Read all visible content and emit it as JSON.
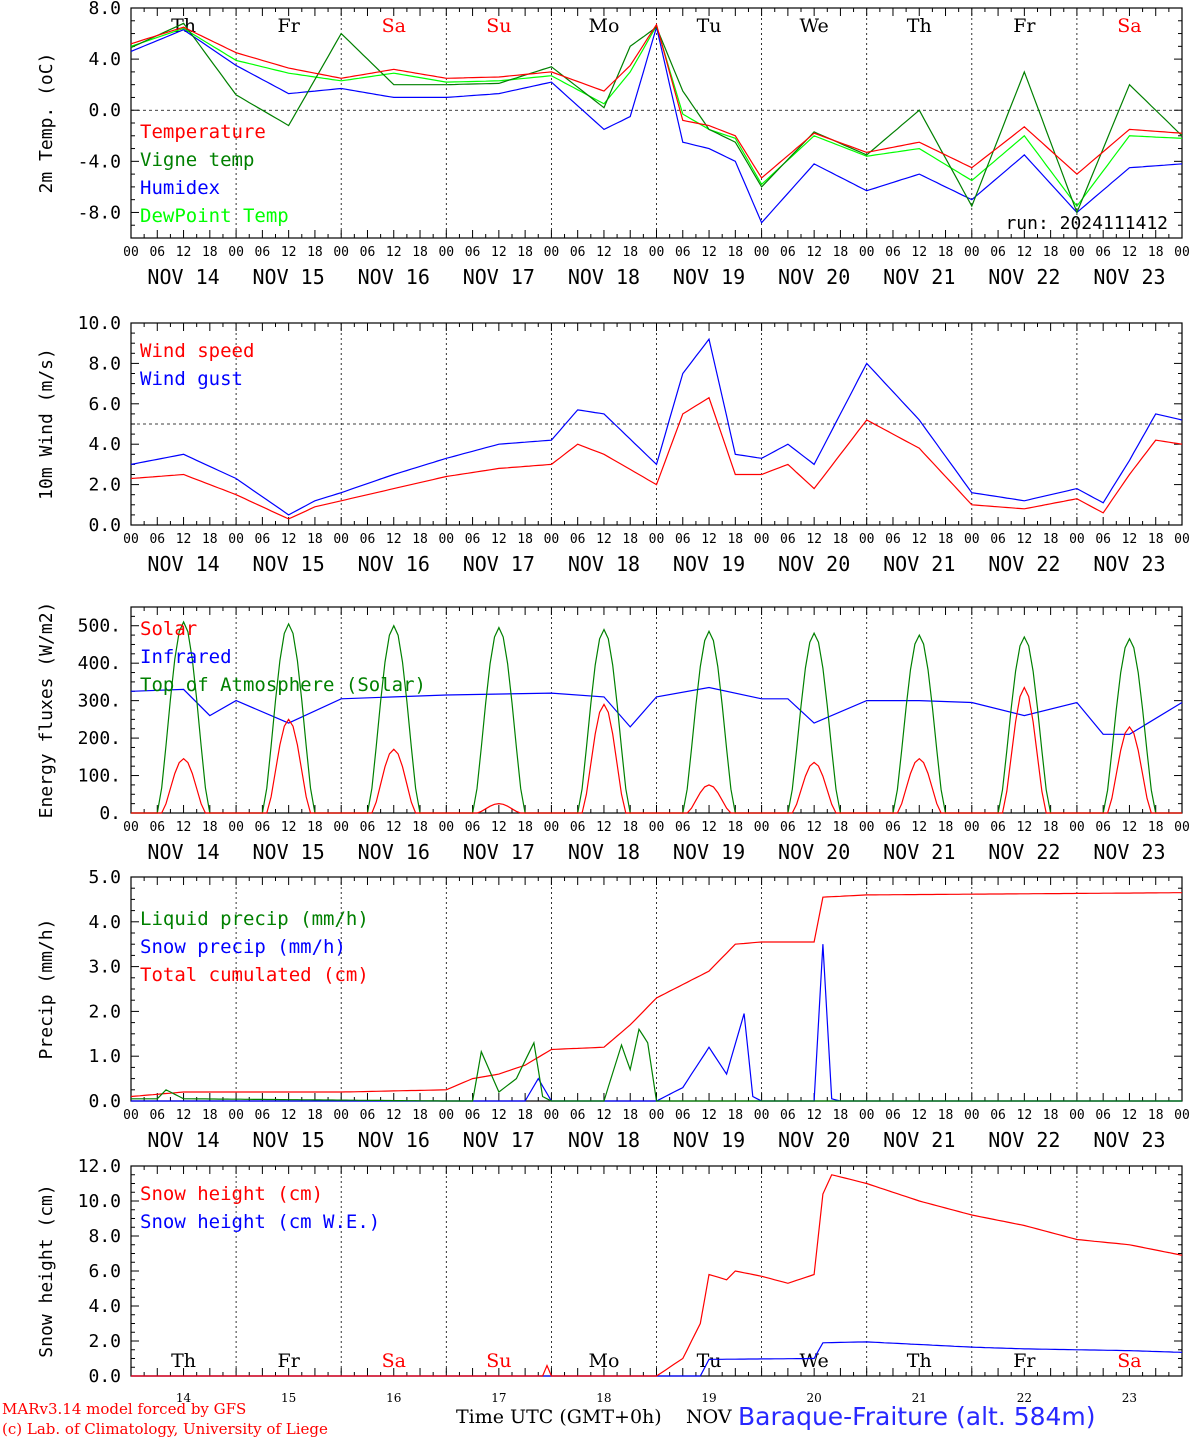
{
  "run_label": "run: 2024111412",
  "x_time_title": "Time UTC (GMT+0h)",
  "x_month": "NOV",
  "station": "Baraque-Fraiture (alt. 584m)",
  "credits": [
    "MARv3.14 model forced by GFS",
    "(c) Lab. of Climatology, University of Liege"
  ],
  "days": {
    "labels": [
      "NOV 14",
      "NOV 15",
      "NOV 16",
      "NOV 17",
      "NOV 18",
      "NOV 19",
      "NOV 20",
      "NOV 21",
      "NOV 22",
      "NOV 23"
    ],
    "weekdays": [
      "Th",
      "Fr",
      "Sa",
      "Su",
      "Mo",
      "Tu",
      "We",
      "Th",
      "Fr",
      "Sa"
    ],
    "weekday_colors": [
      "#000000",
      "#000000",
      "#ff0000",
      "#ff0000",
      "#000000",
      "#000000",
      "#000000",
      "#000000",
      "#000000",
      "#ff0000"
    ],
    "day_numbers": [
      "14",
      "15",
      "16",
      "17",
      "18",
      "19",
      "20",
      "21",
      "22",
      "23"
    ],
    "hour_ticks": [
      "00",
      "06",
      "12",
      "18"
    ]
  },
  "chart_data": [
    {
      "type": "line",
      "ylabel": "2m Temp. (oC)",
      "ylim": [
        -10,
        8
      ],
      "yticks": [
        -8,
        -4,
        0,
        4,
        8
      ],
      "ytick_labels": [
        "-8.0",
        "-4.0",
        "0.0",
        "4.0",
        "8.0"
      ],
      "dashed_y": 0,
      "x_hours": [
        0,
        12,
        24,
        36,
        48,
        60,
        72,
        84,
        96,
        108,
        114,
        120,
        126,
        132,
        138,
        144,
        156,
        168,
        180,
        192,
        204,
        216,
        228,
        240
      ],
      "series": [
        {
          "name": "Temperature",
          "color": "#ff0000",
          "values": [
            5.2,
            6.5,
            4.5,
            3.3,
            2.5,
            3.2,
            2.5,
            2.6,
            3.0,
            1.5,
            3.5,
            6.7,
            -0.8,
            -1.2,
            -2.0,
            -5.3,
            -1.8,
            -3.3,
            -2.5,
            -4.5,
            -1.3,
            -5.0,
            -1.5,
            -1.8
          ]
        },
        {
          "name": "Vigne temp",
          "color": "#008000",
          "values": [
            4.9,
            6.8,
            1.2,
            -1.2,
            6.0,
            2.0,
            2.0,
            2.1,
            3.4,
            0.2,
            5.0,
            6.5,
            1.5,
            -1.5,
            -2.5,
            -6.0,
            -1.7,
            -3.5,
            0.0,
            -7.5,
            3.0,
            -8.0,
            2.0,
            -2.0
          ]
        },
        {
          "name": "Humidex",
          "color": "#0000ff",
          "values": [
            4.6,
            6.3,
            3.5,
            1.3,
            1.7,
            1.0,
            1.0,
            1.3,
            2.2,
            -1.5,
            -0.5,
            6.5,
            -2.5,
            -3.0,
            -4.0,
            -8.8,
            -4.2,
            -6.3,
            -5.0,
            -7.0,
            -3.5,
            -8.0,
            -4.5,
            -4.2
          ]
        },
        {
          "name": "DewPoint Temp",
          "color": "#00ff00",
          "values": [
            5.0,
            6.4,
            3.9,
            2.9,
            2.3,
            2.9,
            2.2,
            2.3,
            2.7,
            0.5,
            3.0,
            6.6,
            -0.3,
            -1.5,
            -2.2,
            -5.8,
            -2.0,
            -3.6,
            -3.0,
            -5.5,
            -2.0,
            -7.5,
            -2.0,
            -2.2
          ]
        }
      ],
      "legend": "top-left"
    },
    {
      "type": "line",
      "ylabel": "10m Wind (m/s)",
      "ylim": [
        0,
        10
      ],
      "yticks": [
        0,
        2,
        4,
        6,
        8,
        10
      ],
      "ytick_labels": [
        "0.0",
        "2.0",
        "4.0",
        "6.0",
        "8.0",
        "10.0"
      ],
      "dashed_y": 5,
      "x_hours": [
        0,
        12,
        24,
        36,
        42,
        48,
        60,
        72,
        84,
        96,
        102,
        108,
        120,
        126,
        132,
        138,
        144,
        150,
        156,
        168,
        180,
        192,
        204,
        216,
        222,
        228,
        234,
        240
      ],
      "series": [
        {
          "name": "Wind speed",
          "color": "#ff0000",
          "values": [
            2.3,
            2.5,
            1.5,
            0.3,
            0.9,
            1.2,
            1.8,
            2.4,
            2.8,
            3.0,
            4.0,
            3.5,
            2.0,
            5.5,
            6.3,
            2.5,
            2.5,
            3.0,
            1.8,
            5.2,
            3.8,
            1.0,
            0.8,
            1.3,
            0.6,
            2.5,
            4.2,
            4.0
          ]
        },
        {
          "name": "Wind gust",
          "color": "#0000ff",
          "values": [
            3.0,
            3.5,
            2.3,
            0.5,
            1.2,
            1.6,
            2.5,
            3.3,
            4.0,
            4.2,
            5.7,
            5.5,
            3.0,
            7.5,
            9.2,
            3.5,
            3.3,
            4.0,
            3.0,
            8.0,
            5.2,
            1.6,
            1.2,
            1.8,
            1.1,
            3.2,
            5.5,
            5.2
          ]
        }
      ],
      "legend": "top-left"
    },
    {
      "type": "line",
      "ylabel": "Energy fluxes (W/m2)",
      "ylim": [
        0,
        550
      ],
      "yticks": [
        0,
        100,
        200,
        300,
        400,
        500
      ],
      "ytick_labels": [
        "0.",
        "100.",
        "200.",
        "300.",
        "400.",
        "500."
      ],
      "solar_peaks": [
        145,
        250,
        170,
        25,
        290,
        75,
        135,
        145,
        335,
        230
      ],
      "toa_peaks": [
        510,
        505,
        500,
        495,
        490,
        485,
        480,
        475,
        470,
        465
      ],
      "series": [
        {
          "name": "Solar",
          "color": "#ff0000"
        },
        {
          "name": "Infrared",
          "color": "#0000ff",
          "x_hours": [
            0,
            12,
            18,
            24,
            36,
            48,
            72,
            96,
            108,
            114,
            120,
            132,
            144,
            150,
            156,
            168,
            180,
            192,
            204,
            216,
            222,
            228,
            240
          ],
          "values": [
            325,
            330,
            260,
            300,
            240,
            305,
            315,
            320,
            310,
            230,
            310,
            335,
            305,
            305,
            240,
            300,
            300,
            295,
            260,
            295,
            210,
            210,
            295
          ]
        },
        {
          "name": "Top of Atmosphere (Solar)",
          "color": "#008000"
        }
      ],
      "legend": "top-left"
    },
    {
      "type": "line",
      "ylabel": "Precip (mm/h)",
      "ylim": [
        0,
        5
      ],
      "yticks": [
        0,
        1,
        2,
        3,
        4,
        5
      ],
      "ytick_labels": [
        "0.0",
        "1.0",
        "2.0",
        "3.0",
        "4.0",
        "5.0"
      ],
      "series": [
        {
          "name": "Liquid precip (mm/h)",
          "color": "#008000",
          "x_hours": [
            0,
            6,
            8,
            12,
            72,
            78,
            80,
            84,
            88,
            92,
            94,
            96,
            108,
            112,
            114,
            116,
            118,
            120,
            124,
            126,
            240
          ],
          "values": [
            0.05,
            0.05,
            0.25,
            0.05,
            0.0,
            0.0,
            1.1,
            0.2,
            0.5,
            1.3,
            0.1,
            0.0,
            0.0,
            1.25,
            0.7,
            1.6,
            1.3,
            0.0,
            0.0,
            0.0,
            0.0
          ]
        },
        {
          "name": "Snow precip (mm/h)",
          "color": "#0000ff",
          "x_hours": [
            0,
            90,
            93,
            96,
            120,
            126,
            132,
            136,
            140,
            142,
            144,
            156,
            158,
            160,
            162,
            240
          ],
          "values": [
            0.0,
            0.0,
            0.5,
            0.0,
            0.0,
            0.3,
            1.2,
            0.6,
            1.95,
            0.1,
            0.0,
            0.0,
            3.5,
            0.05,
            0.0,
            0.0
          ]
        },
        {
          "name": "Total cumulated (cm)",
          "color": "#ff0000",
          "x_hours": [
            0,
            12,
            48,
            72,
            78,
            84,
            90,
            96,
            108,
            114,
            120,
            132,
            138,
            144,
            150,
            156,
            158,
            168,
            240
          ],
          "values": [
            0.1,
            0.2,
            0.2,
            0.25,
            0.5,
            0.6,
            0.8,
            1.15,
            1.2,
            1.7,
            2.3,
            2.9,
            3.5,
            3.55,
            3.55,
            3.55,
            4.55,
            4.6,
            4.65
          ]
        }
      ],
      "legend": "top-left"
    },
    {
      "type": "line",
      "ylabel": "Snow height (cm)",
      "ylim": [
        0,
        12
      ],
      "yticks": [
        0,
        2,
        4,
        6,
        8,
        10,
        12
      ],
      "ytick_labels": [
        "0.0",
        "2.0",
        "4.0",
        "6.0",
        "8.0",
        "10.0",
        "12.0"
      ],
      "series": [
        {
          "name": "Snow height (cm)",
          "color": "#ff0000",
          "x_hours": [
            0,
            94,
            95,
            96,
            120,
            126,
            130,
            132,
            136,
            138,
            144,
            150,
            156,
            158,
            160,
            168,
            180,
            192,
            204,
            216,
            228,
            240
          ],
          "values": [
            0.0,
            0.0,
            0.6,
            0.0,
            0.0,
            1.0,
            3.0,
            5.8,
            5.5,
            6.0,
            5.7,
            5.3,
            5.8,
            10.4,
            11.5,
            11.0,
            10.0,
            9.2,
            8.6,
            7.8,
            7.5,
            6.9
          ]
        },
        {
          "name": "Snow height (cm W.E.)",
          "color": "#0000ff",
          "x_hours": [
            0,
            130,
            132,
            156,
            158,
            168,
            180,
            192,
            204,
            216,
            228,
            240
          ],
          "values": [
            0.0,
            0.0,
            0.95,
            1.0,
            1.9,
            1.95,
            1.8,
            1.65,
            1.55,
            1.5,
            1.45,
            1.35
          ]
        }
      ],
      "legend": "top-left"
    }
  ]
}
